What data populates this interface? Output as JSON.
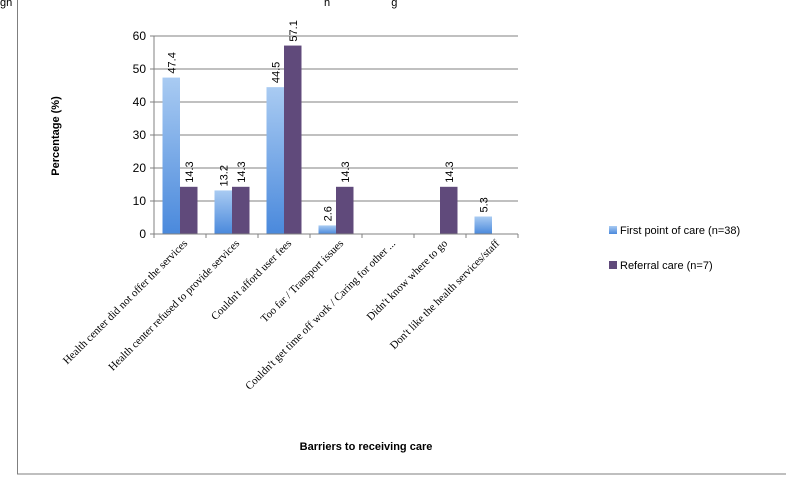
{
  "colors": {
    "series1_light": "#a9cbf2",
    "series1_dark": "#4a89dc",
    "series2": "#604a7b",
    "grid": "#808080",
    "axis": "#808080"
  },
  "chart_data": {
    "type": "bar",
    "title_fragment": "gh                                                                                                      h                    g",
    "categories": [
      "Health center did not offer the services",
      "Health center refused to provide services",
      "Couldn't afford user fees",
      "Too far / Transport issues",
      "Couldn't get time off work / Caring for other ...",
      "Didn't know where to go",
      "Don't like the health services/staff"
    ],
    "series": [
      {
        "name": "First point of care (n=38)",
        "values": [
          47.4,
          13.2,
          44.5,
          2.6,
          null,
          null,
          5.3
        ],
        "labels": [
          "47.4",
          "13.2",
          "44.5",
          "2.6",
          "",
          "",
          "5.3"
        ]
      },
      {
        "name": "Referral care (n=7)",
        "values": [
          14.3,
          14.3,
          57.1,
          14.3,
          null,
          14.3,
          null
        ],
        "labels": [
          "14.3",
          "14.3",
          "57.1",
          "14.3",
          "",
          "14.3",
          ""
        ]
      }
    ],
    "yticks": [
      "0",
      "10",
      "20",
      "30",
      "40",
      "50",
      "60"
    ],
    "xlabel": "Barriers to receiving care",
    "ylabel": "Percentage (%)",
    "ylim": [
      0,
      60
    ],
    "grid": true,
    "legend": "right"
  }
}
